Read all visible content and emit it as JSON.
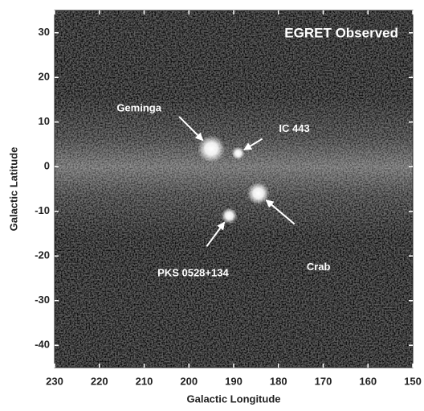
{
  "chart_data": {
    "type": "image",
    "title": "EGRET Observed",
    "x_label": "Galactic Longitude",
    "y_label": "Galactic Latitude",
    "xlim": [
      230,
      150
    ],
    "ylim": [
      -45,
      35
    ],
    "xticks": [
      230,
      220,
      210,
      200,
      190,
      180,
      170,
      160,
      150
    ],
    "yticks": [
      30,
      20,
      10,
      0,
      -10,
      -20,
      -30,
      -40
    ],
    "sources": [
      {
        "name": "Geminga",
        "x": 195,
        "y": 4
      },
      {
        "name": "IC 443",
        "x": 189,
        "y": 3
      },
      {
        "name": "Crab",
        "x": 184.5,
        "y": -6
      },
      {
        "name": "PKS 0528+134",
        "x": 191,
        "y": -11
      }
    ]
  }
}
